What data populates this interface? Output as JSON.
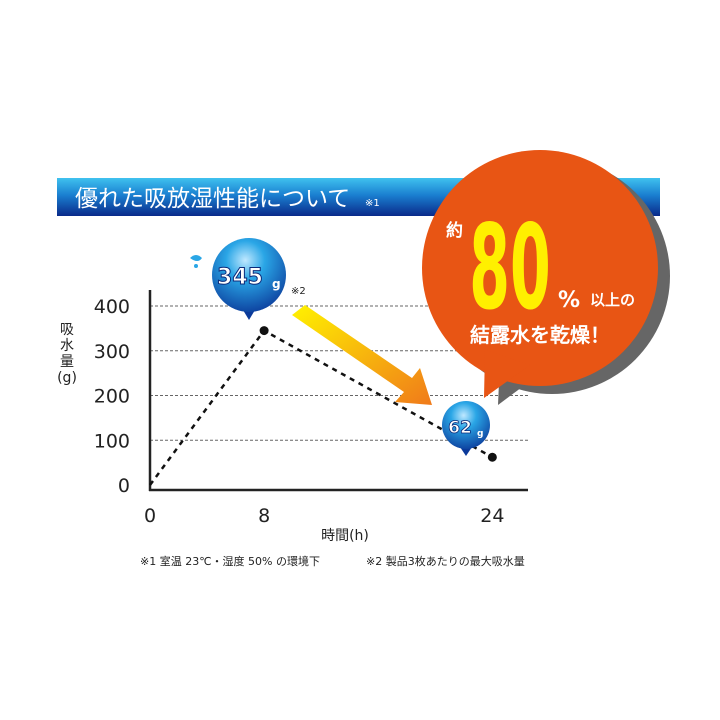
{
  "header": {
    "title": "優れた吸放湿性能について",
    "note_mark": "※1"
  },
  "bubble": {
    "prefix": "約",
    "number": "80",
    "percent": "%",
    "suffix": "以上の",
    "line2": "結露水を乾燥！"
  },
  "colors": {
    "header_top": "#3fc2ef",
    "header_bottom": "#0a2a8a",
    "bubble": "#e85514",
    "bubble_number": "#fff000",
    "shadow": "#666666",
    "ball": "#1b5fbf",
    "ball_light": "#2aa6e6",
    "arrow_start": "#fff200",
    "arrow_end": "#f07a1a"
  },
  "chart_data": {
    "type": "line",
    "xlabel": "時間(h)",
    "ylabel": "吸水量(g)",
    "x_ticks": [
      "0",
      "8",
      "24"
    ],
    "y_ticks": [
      "0",
      "100",
      "200",
      "300",
      "400"
    ],
    "xlim": [
      0,
      26.5
    ],
    "ylim": [
      0,
      400
    ],
    "grid": true,
    "line_style": "dotted",
    "points": [
      {
        "x": 0,
        "y": 0
      },
      {
        "x": 8,
        "y": 345
      },
      {
        "x": 24,
        "y": 62
      }
    ],
    "annotations": [
      {
        "label": "345",
        "unit": "g",
        "note": "※2"
      },
      {
        "label": "62",
        "unit": "g"
      }
    ]
  },
  "footnotes": {
    "note1": "※1 室温 23℃・湿度 50% の環境下",
    "note2": "※2  製品3枚あたりの最大吸水量"
  }
}
